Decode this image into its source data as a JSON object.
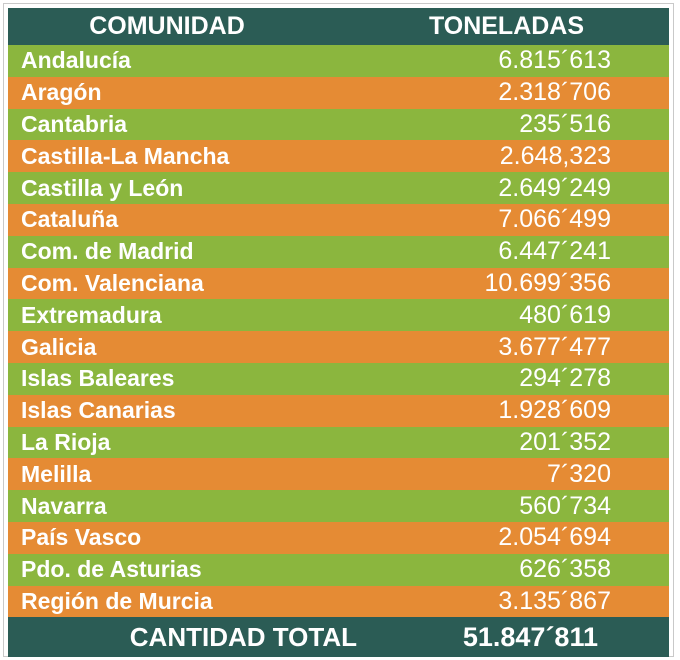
{
  "header": {
    "col_region": "COMUNIDAD",
    "col_tons": "TONELADAS"
  },
  "rows": [
    {
      "region": "Andalucía",
      "tons": "6.815´613"
    },
    {
      "region": "Aragón",
      "tons": "2.318´706"
    },
    {
      "region": "Cantabria",
      "tons": "235´516"
    },
    {
      "region": "Castilla-La Mancha",
      "tons": "2.648,323"
    },
    {
      "region": "Castilla y León",
      "tons": "2.649´249"
    },
    {
      "region": "Cataluña",
      "tons": "7.066´499"
    },
    {
      "region": "Com. de Madrid",
      "tons": "6.447´241"
    },
    {
      "region": "Com. Valenciana",
      "tons": "10.699´356"
    },
    {
      "region": "Extremadura",
      "tons": "480´619"
    },
    {
      "region": "Galicia",
      "tons": "3.677´477"
    },
    {
      "region": "Islas Baleares",
      "tons": "294´278"
    },
    {
      "region": "Islas Canarias",
      "tons": "1.928´609"
    },
    {
      "region": "La Rioja",
      "tons": "201´352"
    },
    {
      "region": "Melilla",
      "tons": "7´320"
    },
    {
      "region": "Navarra",
      "tons": "560´734"
    },
    {
      "region": "País Vasco",
      "tons": "2.054´694"
    },
    {
      "region": "Pdo. de Asturias",
      "tons": "626´358"
    },
    {
      "region": "Región de Murcia",
      "tons": "3.135´867"
    }
  ],
  "footer": {
    "label": "CANTIDAD TOTAL",
    "total": "51.847´811"
  },
  "colors": {
    "header_bg": "#2b5c55",
    "row_green": "#8bb63e",
    "row_orange": "#e58b34",
    "text": "#ffffff"
  }
}
